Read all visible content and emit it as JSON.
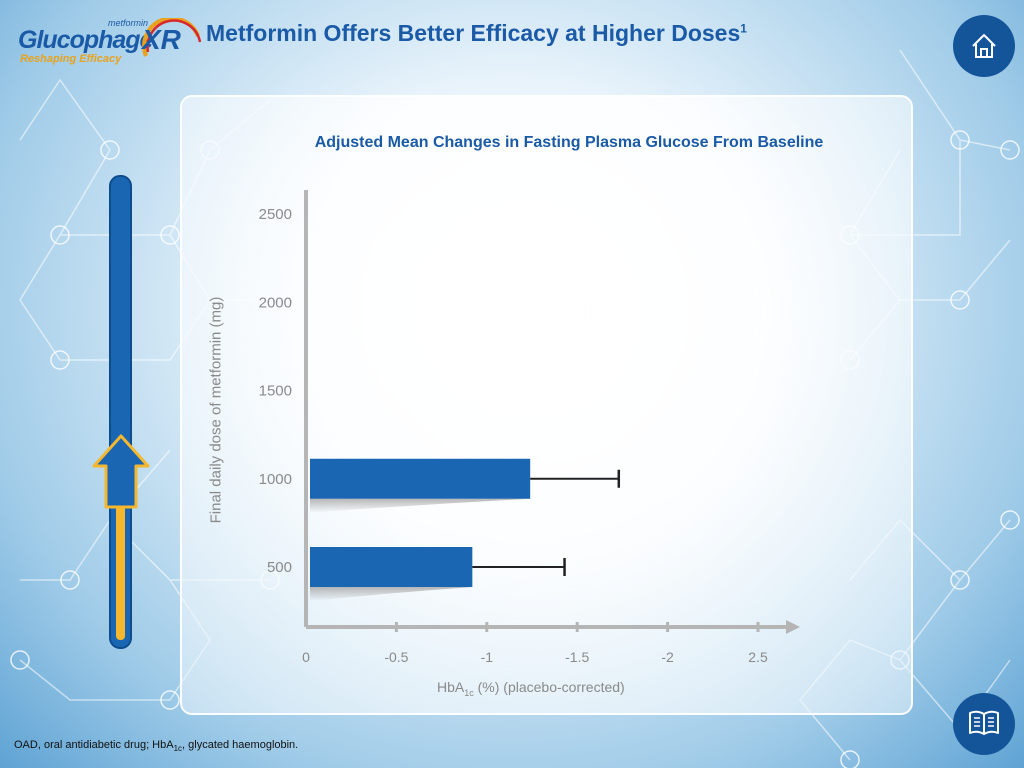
{
  "header": {
    "logo_brand": "Glucophage",
    "logo_small": "metformin",
    "logo_suffix": "XR",
    "tagline": "Reshaping Efficacy",
    "title": "Metformin Offers Better Efficacy at Higher Doses",
    "title_superscript": "1"
  },
  "nav": {
    "home_icon": "home-icon",
    "book_icon": "book-icon"
  },
  "chart_data": {
    "type": "bar",
    "orientation": "horizontal",
    "title": "Adjusted Mean Changes in Fasting Plasma Glucose From Baseline",
    "ylabel": "Final daily dose of metformin (mg)",
    "xlabel_main": "HbA",
    "xlabel_sub": "1c",
    "xlabel_rest": " (%) (placebo-corrected)",
    "y_ticks": [
      "2500",
      "2000",
      "1500",
      "1000",
      "500"
    ],
    "x_ticks": [
      "0",
      "-0.5",
      "-1",
      "-1.5",
      "-2",
      "2.5"
    ],
    "categories": [
      "1000",
      "500"
    ],
    "values": [
      -1.24,
      -0.92
    ],
    "error_upper": [
      -1.73,
      -1.43
    ],
    "xlim": [
      0,
      -2.5
    ],
    "ylim": [
      250,
      2500
    ],
    "grid": false
  },
  "slider": {
    "indicator_icon": "up-arrow-icon"
  },
  "footnote": {
    "part1": "OAD, oral antidiabetic drug; HbA",
    "sub": "1c",
    "part2": ", glycated haemoglobin."
  },
  "colors": {
    "brand_blue": "#1a5aa6",
    "bar_blue": "#1a66b3",
    "accent_orange": "#e9a21b",
    "axis_gray": "#b5b5b5"
  }
}
